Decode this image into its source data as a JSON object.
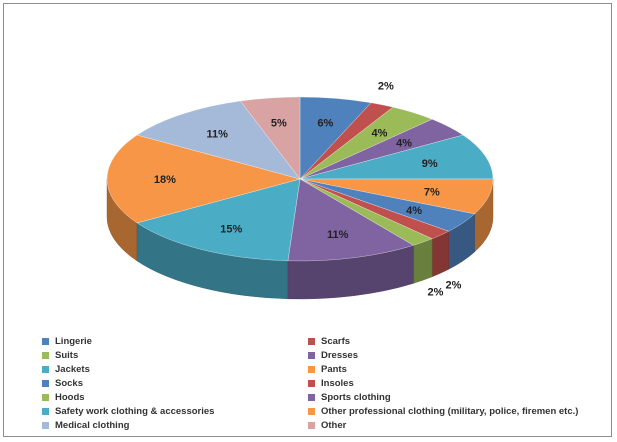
{
  "chart_data": {
    "type": "pie",
    "style": "3d",
    "title": "",
    "legend_position": "bottom",
    "slices": [
      {
        "name": "Lingerie",
        "value": 6,
        "label": "6%",
        "color": "#4f81bd"
      },
      {
        "name": "Scarfs",
        "value": 2,
        "label": "2%",
        "color": "#c0504d"
      },
      {
        "name": "Suits",
        "value": 4,
        "label": "4%",
        "color": "#9bbb59"
      },
      {
        "name": "Dresses",
        "value": 4,
        "label": "4%",
        "color": "#8064a2"
      },
      {
        "name": "Jackets",
        "value": 9,
        "label": "9%",
        "color": "#4bacc6"
      },
      {
        "name": "Pants",
        "value": 7,
        "label": "7%",
        "color": "#f79646"
      },
      {
        "name": "Socks",
        "value": 4,
        "label": "4%",
        "color": "#4f81bd"
      },
      {
        "name": "Insoles",
        "value": 2,
        "label": "2%",
        "color": "#c0504d"
      },
      {
        "name": "Hoods",
        "value": 2,
        "label": "2%",
        "color": "#9bbb59"
      },
      {
        "name": "Sports clothing",
        "value": 11,
        "label": "11%",
        "color": "#8064a2"
      },
      {
        "name": "Safety work clothing & accessories",
        "value": 15,
        "label": "15%",
        "color": "#4bacc6"
      },
      {
        "name": "Other professional clothing (military, police, firemen etc.)",
        "value": 18,
        "label": "18%",
        "color": "#f79646"
      },
      {
        "name": "Medical clothing",
        "value": 11,
        "label": "11%",
        "color": "#a5b9d9"
      },
      {
        "name": "Other",
        "value": 5,
        "label": "5%",
        "color": "#d9a3a3"
      }
    ]
  }
}
